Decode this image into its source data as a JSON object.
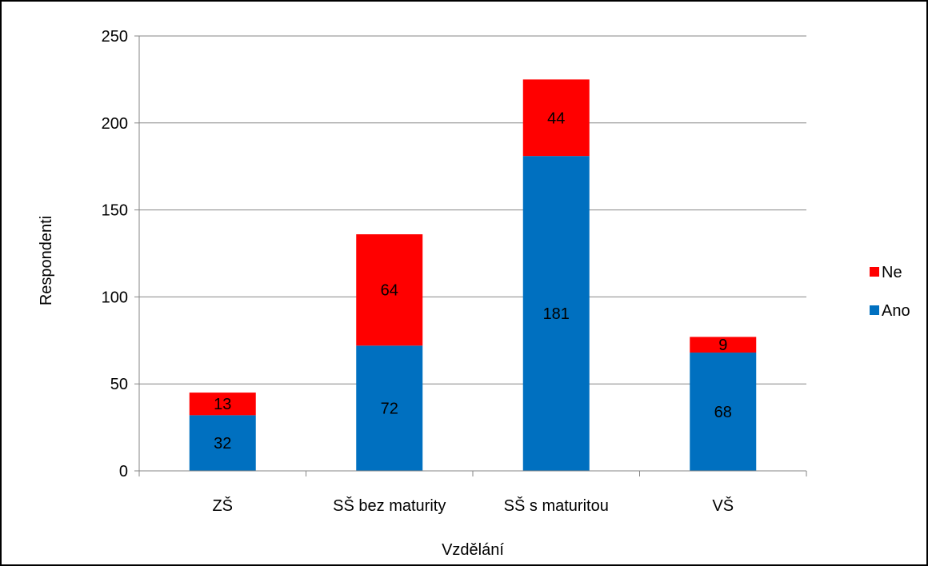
{
  "chart_data": {
    "type": "bar",
    "stacked": true,
    "categories": [
      "ZŠ",
      "SŠ bez maturity",
      "SŠ s maturitou",
      "VŠ"
    ],
    "series": [
      {
        "name": "Ano",
        "values": [
          32,
          72,
          181,
          68
        ],
        "color": "#0070C0"
      },
      {
        "name": "Ne",
        "values": [
          13,
          64,
          44,
          9
        ],
        "color": "#FF0000"
      }
    ],
    "xlabel": "Vzdělání",
    "ylabel": "Respondenti",
    "ylim": [
      0,
      250
    ],
    "yticks": [
      0,
      50,
      100,
      150,
      200,
      250
    ],
    "grid": true,
    "legend_position": "right"
  }
}
